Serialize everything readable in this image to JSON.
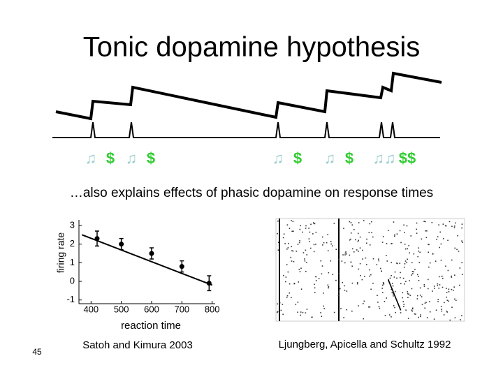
{
  "title": "Tonic dopamine hypothesis",
  "diagram": {
    "symbols": [
      "♫",
      "$",
      "♫",
      "$",
      "♫",
      "$",
      "♫",
      "$",
      "♫♫",
      "$$"
    ]
  },
  "subtitle": "…also explains effects of phasic dopamine on response times",
  "chart_data": {
    "type": "scatter",
    "x_label": "reaction time",
    "y_label": "firing rate",
    "x": [
      420,
      500,
      600,
      700,
      790
    ],
    "y": [
      2.3,
      2.0,
      1.5,
      0.8,
      -0.1
    ],
    "errors": [
      0.4,
      0.3,
      0.3,
      0.3,
      0.4
    ],
    "fit": {
      "x": [
        370,
        800
      ],
      "y": [
        2.5,
        -0.2
      ]
    },
    "xlim": [
      360,
      810
    ],
    "ylim": [
      -1.2,
      3.3
    ],
    "xticks": [
      400,
      500,
      600,
      700,
      800
    ],
    "yticks": [
      -1,
      0,
      1,
      2,
      3
    ],
    "color": "#000000"
  },
  "captions": {
    "left": "Satoh and Kimura 2003",
    "right": "Ljungberg, Apicella and Schultz 1992"
  },
  "page_number": "45"
}
